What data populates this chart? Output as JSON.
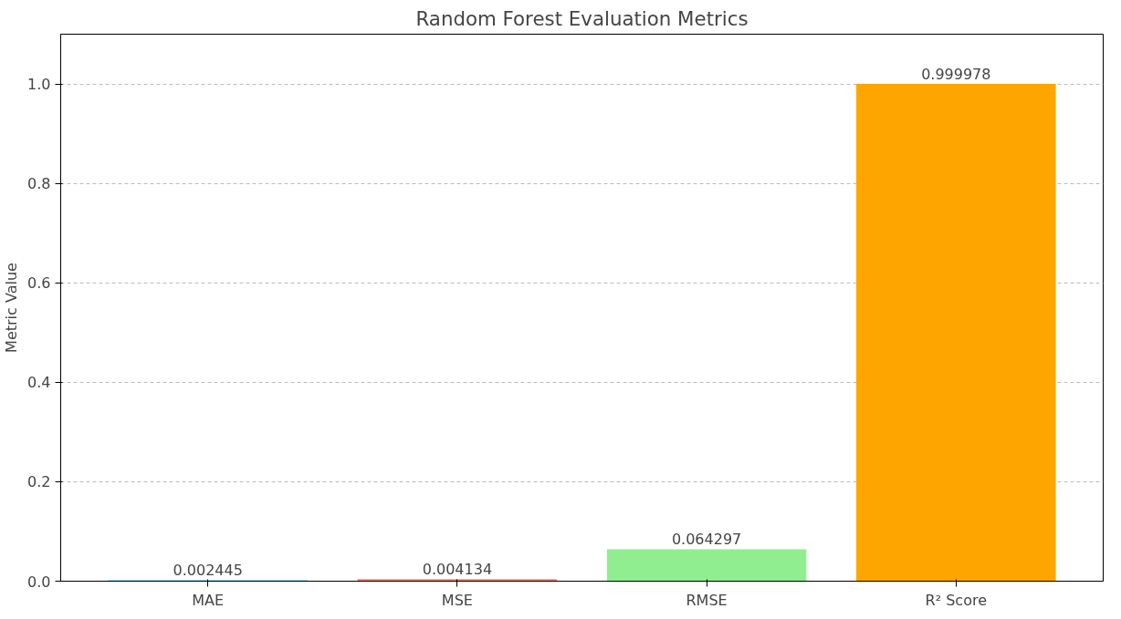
{
  "chart_data": {
    "type": "bar",
    "title": "Random Forest Evaluation Metrics",
    "ylabel": "Metric Value",
    "categories": [
      "MAE",
      "MSE",
      "RMSE",
      "R² Score"
    ],
    "values": [
      0.002445,
      0.004134,
      0.064297,
      0.999978
    ],
    "colors": [
      "#87ceeb",
      "#fa8072",
      "#90ee90",
      "#ffa500"
    ],
    "ylim": [
      0,
      1.1
    ],
    "yticks": [
      {
        "value": 0,
        "label": "0.0"
      },
      0.2,
      0.4,
      0.6,
      0.8,
      {
        "value": 1,
        "label": "1.0"
      }
    ],
    "grid": "y",
    "data_labels": true
  }
}
